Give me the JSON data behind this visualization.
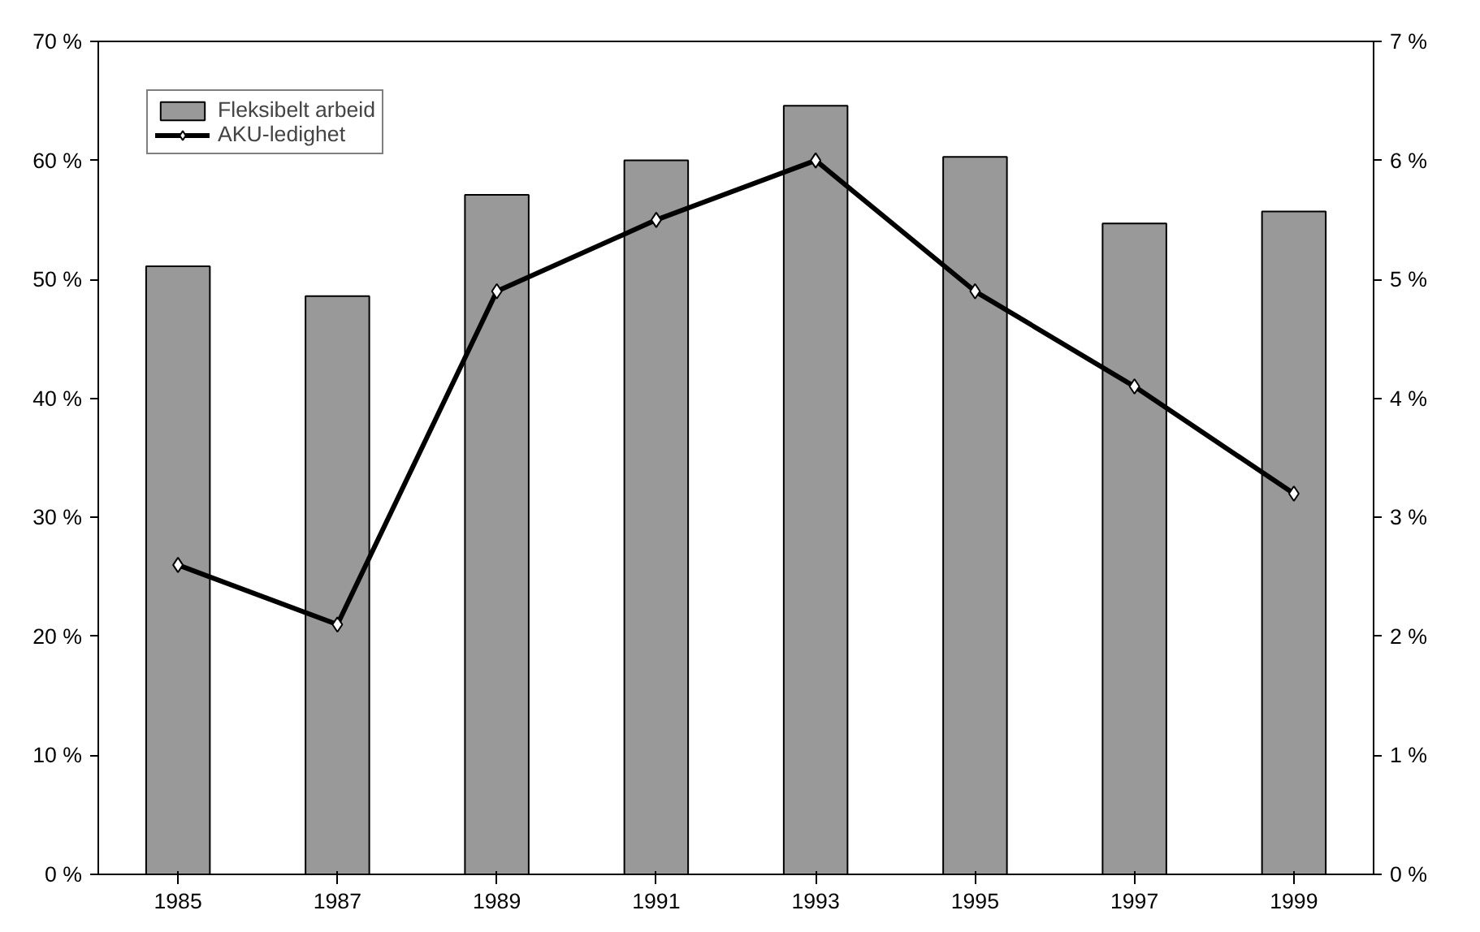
{
  "chart_data": {
    "type": "bar",
    "categories": [
      "1985",
      "1987",
      "1989",
      "1991",
      "1993",
      "1995",
      "1997",
      "1999"
    ],
    "series": [
      {
        "name": "Fleksibelt arbeid",
        "color": "#999999",
        "values": [
          51.1,
          48.6,
          57.1,
          60.0,
          64.6,
          60.3,
          54.7,
          55.7
        ]
      },
      {
        "name": "AKU-ledighet",
        "type": "line",
        "axis": "y2",
        "color": "#000000",
        "marker": "diamond",
        "values": [
          2.6,
          2.1,
          4.9,
          5.5,
          6.0,
          4.9,
          4.1,
          3.2
        ]
      }
    ],
    "ylim": [
      0,
      70
    ],
    "yticks": [
      {
        "value": 0,
        "label": "0 %"
      },
      {
        "value": 10,
        "label": "10 %"
      },
      {
        "value": 20,
        "label": "20 %"
      },
      {
        "value": 30,
        "label": "30 %"
      },
      {
        "value": 40,
        "label": "40 %"
      },
      {
        "value": 50,
        "label": "50 %"
      },
      {
        "value": 60,
        "label": "60 %"
      },
      {
        "value": 70,
        "label": "70 %"
      }
    ],
    "y2lim": [
      0,
      7
    ],
    "y2ticks": [
      {
        "value": 0,
        "label": "0 %"
      },
      {
        "value": 1,
        "label": "1 %"
      },
      {
        "value": 2,
        "label": "2 %"
      },
      {
        "value": 3,
        "label": "3 %"
      },
      {
        "value": 4,
        "label": "4 %"
      },
      {
        "value": 5,
        "label": "5 %"
      },
      {
        "value": 6,
        "label": "6 %"
      },
      {
        "value": 7,
        "label": "7 %"
      }
    ],
    "grid": false,
    "legend": "top left",
    "line_style": "solid"
  }
}
